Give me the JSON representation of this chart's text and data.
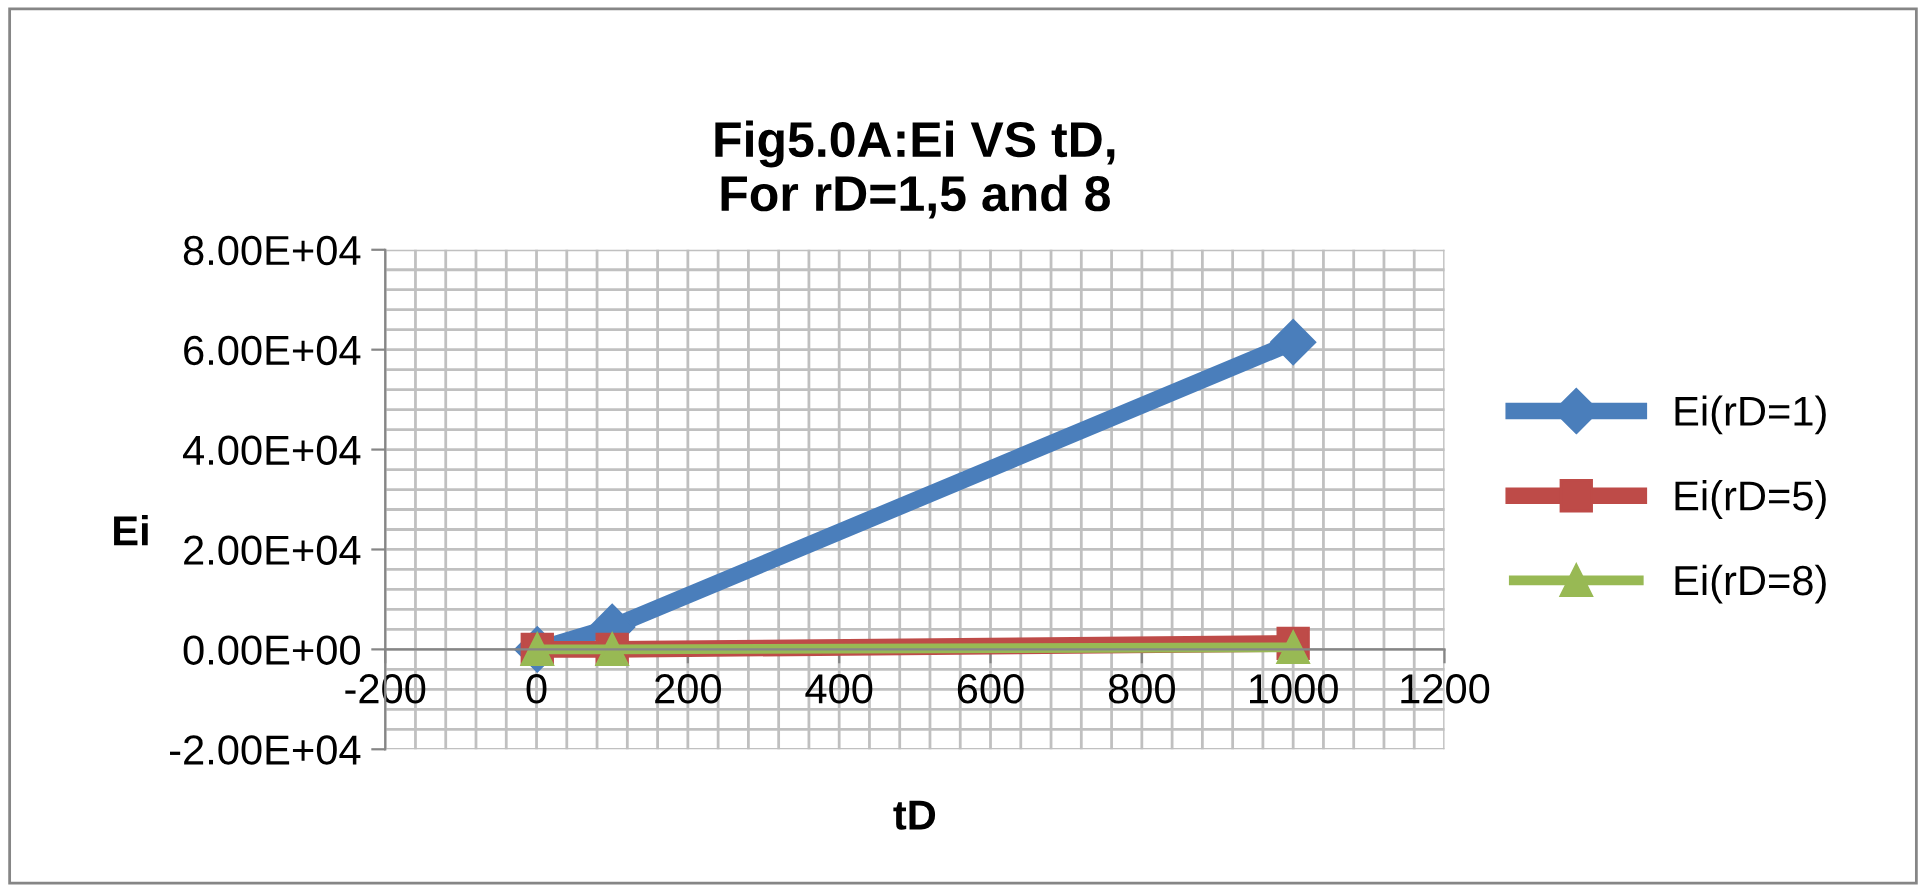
{
  "chart_data": {
    "type": "line",
    "title": "Fig5.0A:Ei VS tD,\nFor rD=1,5 and 8",
    "xlabel": "tD",
    "ylabel": "Ei",
    "x": [
      1,
      100,
      1000
    ],
    "series": [
      {
        "name": "Ei(rD=1)",
        "color": "#4a7ebb",
        "values": [
          0,
          4500,
          61500
        ],
        "marker": "diamond"
      },
      {
        "name": "Ei(rD=5)",
        "color": "#be4b48",
        "values": [
          0,
          0,
          1200
        ],
        "marker": "square"
      },
      {
        "name": "Ei(rD=8)",
        "color": "#98b954",
        "values": [
          0,
          0,
          400
        ],
        "marker": "triangle"
      }
    ],
    "xlim": [
      -200,
      1200
    ],
    "xticks": [
      -200,
      0,
      200,
      400,
      600,
      800,
      1000,
      1200
    ],
    "ylim": [
      -20000,
      80000
    ],
    "yticks": [
      {
        "value": -20000,
        "label": "-2.00E+04"
      },
      {
        "value": 0,
        "label": "0.00E+00"
      },
      {
        "value": 20000,
        "label": "2.00E+04"
      },
      {
        "value": 40000,
        "label": "4.00E+04"
      },
      {
        "value": 60000,
        "label": "6.00E+04"
      },
      {
        "value": 80000,
        "label": "8.00E+04"
      }
    ],
    "grid": true,
    "legend": "right",
    "line_style": "solid"
  }
}
